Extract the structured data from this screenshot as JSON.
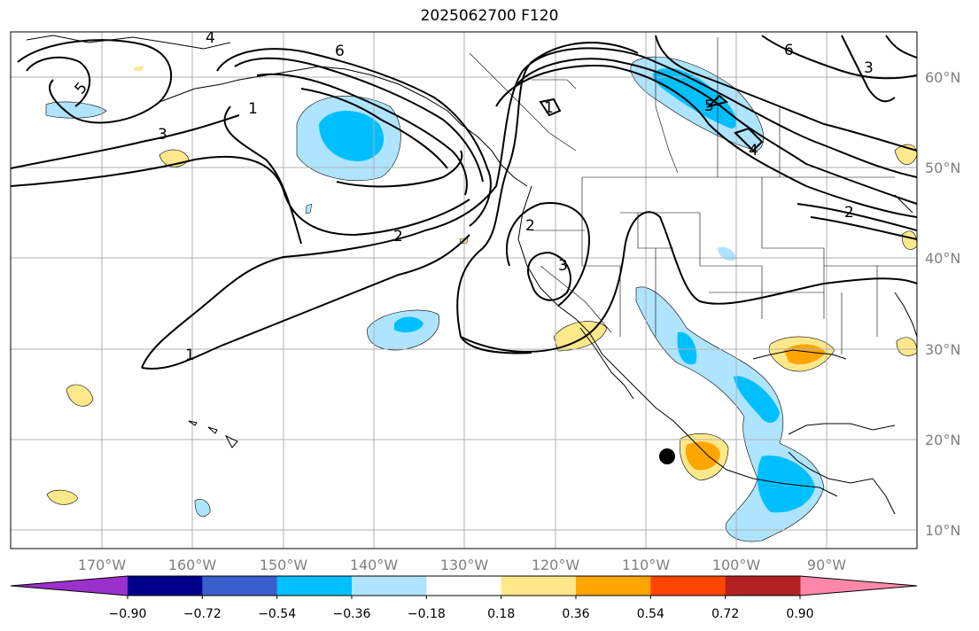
{
  "title": "2025062700 F120",
  "lon_ticks": [
    "170°W",
    "160°W",
    "150°W",
    "140°W",
    "130°W",
    "120°W",
    "110°W",
    "100°W",
    "90°W"
  ],
  "lat_ticks": [
    "60°N",
    "50°N",
    "40°N",
    "30°N",
    "20°N",
    "10°N"
  ],
  "colorbar": {
    "ticks": [
      "−0.90",
      "−0.72",
      "−0.54",
      "−0.36",
      "−0.18",
      "0.18",
      "0.36",
      "0.54",
      "0.72",
      "0.90"
    ],
    "colors": [
      "#9932cc",
      "#00008b",
      "#3a5fcd",
      "#00bfff",
      "#aee4ff",
      "#ffffff",
      "#ffe88a",
      "#ffa500",
      "#ff4500",
      "#b22222",
      "#ff88aa"
    ]
  },
  "contour_labels": [
    "4",
    "5",
    "3",
    "6",
    "1",
    "2",
    "1",
    "2",
    "3",
    "6",
    "3",
    "1",
    "2",
    "5",
    "4"
  ],
  "shading_colors": {
    "neg_light": "#aee4ff",
    "neg_mid": "#00bfff",
    "pos_light": "#ffe88a",
    "pos_mid": "#ffa500"
  }
}
